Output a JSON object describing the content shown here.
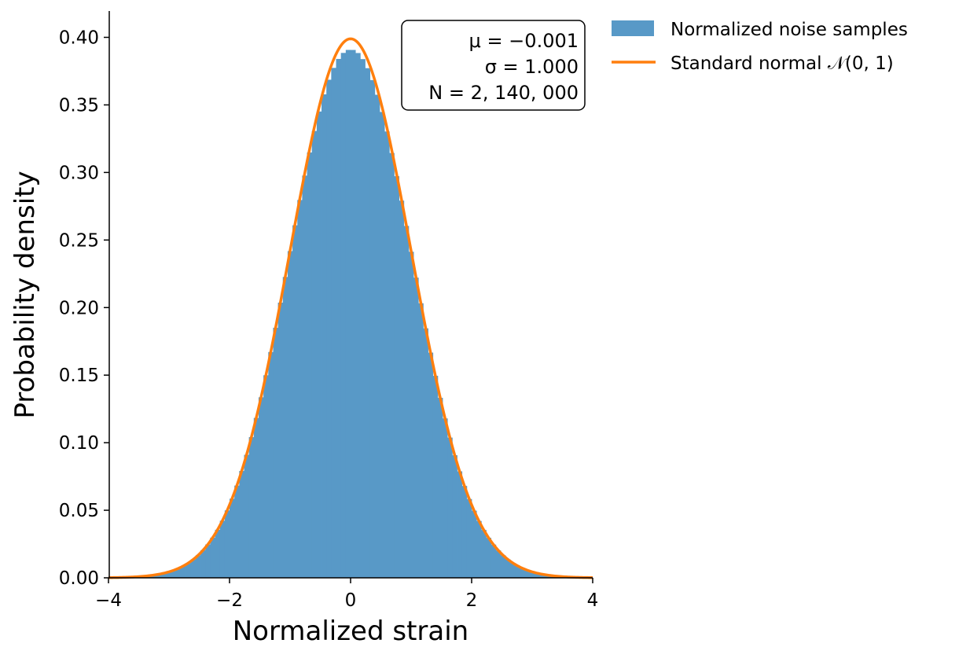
{
  "chart_data": {
    "type": "histogram",
    "xlabel": "Normalized strain",
    "ylabel": "Probability density",
    "xlim": [
      -4,
      4
    ],
    "ylim": [
      0,
      0.42
    ],
    "xticks": [
      -4,
      -2,
      0,
      2,
      4
    ],
    "xtick_labels": [
      "−4",
      "−2",
      "0",
      "2",
      "4"
    ],
    "yticks": [
      0.0,
      0.05,
      0.1,
      0.15,
      0.2,
      0.25,
      0.3,
      0.35,
      0.4
    ],
    "ytick_labels": [
      "0.00",
      "0.05",
      "0.10",
      "0.15",
      "0.20",
      "0.25",
      "0.30",
      "0.35",
      "0.40"
    ],
    "series": [
      {
        "name": "Normalized noise samples",
        "kind": "histogram",
        "color": "#5899c7",
        "mean": -0.001,
        "std": 1.0,
        "n_samples": 2140000,
        "bin_width": 0.08,
        "range": [
          -4,
          4
        ]
      },
      {
        "name": "Standard normal 𝒩(0, 1)",
        "kind": "line",
        "color": "#ff7f0e",
        "function": "standard_normal_pdf"
      }
    ],
    "stats_box": {
      "mu": "μ = −0.001",
      "sigma": "σ = 1.000",
      "n": "N = 2, 140, 000"
    },
    "legend": {
      "placement": "outside-right",
      "entries": [
        "Normalized noise samples",
        "Standard normal 𝒩(0, 1)"
      ]
    }
  }
}
